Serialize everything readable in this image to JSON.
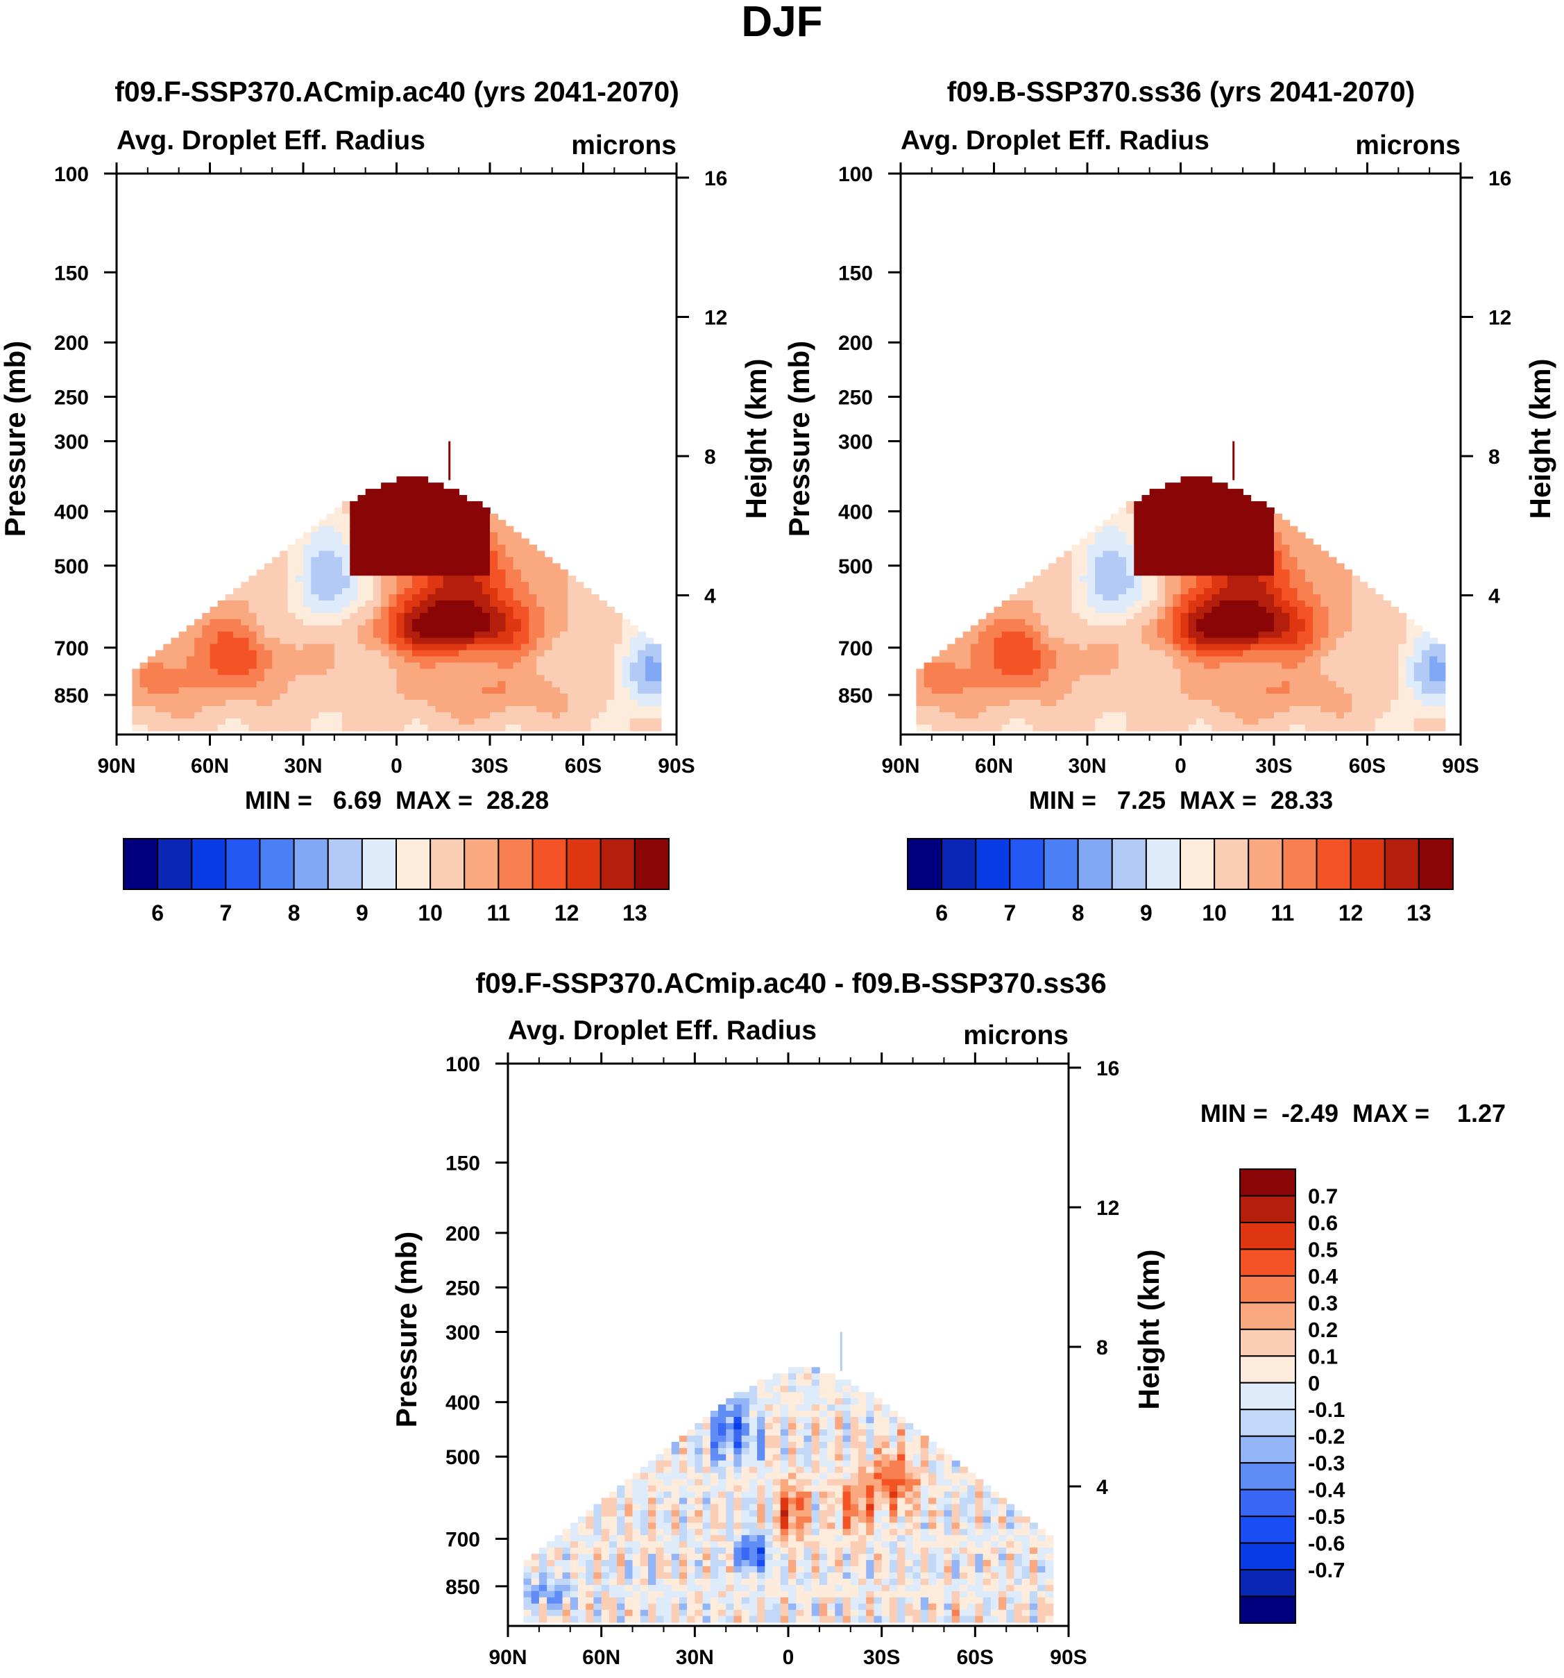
{
  "figure_title": "DJF",
  "chart_data": [
    {
      "type": "heatmap",
      "title": "f09.F-SSP370.ACmip.ac40 (yrs 2041-2070)",
      "subtitle_left": "Avg. Droplet Eff. Radius",
      "subtitle_right": "microns",
      "ylabel": "Pressure (mb)",
      "y2label": "Height (km)",
      "xticks": [
        "90N",
        "60N",
        "30N",
        "0",
        "30S",
        "60S",
        "90S"
      ],
      "xlim": [
        90,
        -90
      ],
      "yticks": [
        100,
        150,
        200,
        250,
        300,
        400,
        500,
        700,
        850
      ],
      "ylim": [
        100,
        1000
      ],
      "y2ticks": [
        16,
        12,
        8,
        4
      ],
      "stats_label": "MIN =   6.69  MAX =  28.28",
      "min": 6.69,
      "max": 28.28,
      "colorbar": {
        "orientation": "horizontal",
        "levels": [
          5.5,
          6,
          6.5,
          7,
          7.5,
          8,
          8.5,
          9,
          9.5,
          10,
          10.5,
          11,
          11.5,
          12,
          12.5,
          13,
          13.5
        ],
        "tick_labels": [
          "6",
          "7",
          "8",
          "9",
          "10",
          "11",
          "12",
          "13"
        ]
      }
    },
    {
      "type": "heatmap",
      "title": "f09.B-SSP370.ss36 (yrs 2041-2070)",
      "subtitle_left": "Avg. Droplet Eff. Radius",
      "subtitle_right": "microns",
      "ylabel": "Pressure (mb)",
      "y2label": "Height (km)",
      "xticks": [
        "90N",
        "60N",
        "30N",
        "0",
        "30S",
        "60S",
        "90S"
      ],
      "xlim": [
        90,
        -90
      ],
      "yticks": [
        100,
        150,
        200,
        250,
        300,
        400,
        500,
        700,
        850
      ],
      "ylim": [
        100,
        1000
      ],
      "y2ticks": [
        16,
        12,
        8,
        4
      ],
      "stats_label": "MIN =   7.25  MAX =  28.33",
      "min": 7.25,
      "max": 28.33,
      "colorbar": {
        "orientation": "horizontal",
        "levels": [
          5.5,
          6,
          6.5,
          7,
          7.5,
          8,
          8.5,
          9,
          9.5,
          10,
          10.5,
          11,
          11.5,
          12,
          12.5,
          13,
          13.5
        ],
        "tick_labels": [
          "6",
          "7",
          "8",
          "9",
          "10",
          "11",
          "12",
          "13"
        ]
      }
    },
    {
      "type": "heatmap",
      "title": "f09.F-SSP370.ACmip.ac40 - f09.B-SSP370.ss36",
      "subtitle_left": "Avg. Droplet Eff. Radius",
      "subtitle_right": "microns",
      "ylabel": "Pressure (mb)",
      "y2label": "Height (km)",
      "xticks": [
        "90N",
        "60N",
        "30N",
        "0",
        "30S",
        "60S",
        "90S"
      ],
      "xlim": [
        90,
        -90
      ],
      "yticks": [
        100,
        150,
        200,
        250,
        300,
        400,
        500,
        700,
        850
      ],
      "ylim": [
        100,
        1000
      ],
      "y2ticks": [
        16,
        12,
        8,
        4
      ],
      "stats_label": "MIN =  -2.49  MAX =    1.27",
      "min": -2.49,
      "max": 1.27,
      "colorbar": {
        "orientation": "vertical",
        "tick_labels": [
          "0.7",
          "0.6",
          "0.5",
          "0.4",
          "0.3",
          "0.2",
          "0.1",
          "0",
          "-0.1",
          "-0.2",
          "-0.3",
          "-0.4",
          "-0.5",
          "-0.6",
          "-0.7"
        ]
      }
    }
  ],
  "colors": {
    "seq_palette": [
      "#00007f",
      "#0a26b4",
      "#0a3ce6",
      "#2458f5",
      "#4b7ff5",
      "#80a8f5",
      "#b3caf7",
      "#ddebfb",
      "#fdebdc",
      "#fbcdb5",
      "#f9a880",
      "#f88050",
      "#f45326",
      "#dd3610",
      "#b41e0c",
      "#8a0606"
    ],
    "diff_palette": [
      "#00007f",
      "#0a26b4",
      "#0a3ce6",
      "#1a4ef5",
      "#3a68f5",
      "#608cf5",
      "#93b5f7",
      "#c2d8f8",
      "#ddebfb",
      "#fdebdc",
      "#fbcdb5",
      "#f9a880",
      "#f88050",
      "#f45326",
      "#dd3610",
      "#b41e0c",
      "#8a0606"
    ],
    "axis": "#000000",
    "marker_line": "#8a0606"
  }
}
